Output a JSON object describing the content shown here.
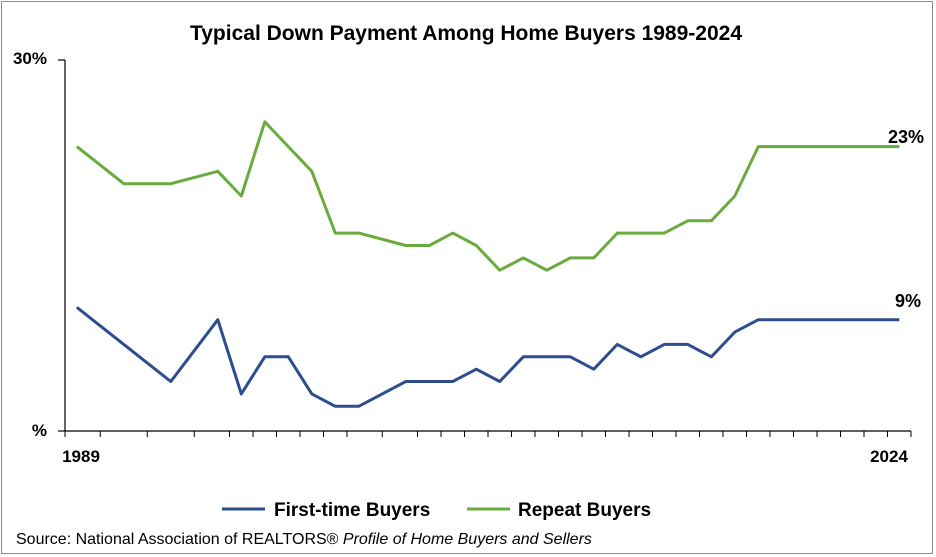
{
  "chart_data": {
    "type": "line",
    "title": "Typical Down Payment Among Home Buyers 1989-2024",
    "x": [
      1989,
      1991,
      1993,
      1995,
      1996,
      1997,
      1998,
      1999,
      2000,
      2001,
      2003,
      2004,
      2005,
      2006,
      2007,
      2008,
      2009,
      2010,
      2011,
      2012,
      2013,
      2014,
      2015,
      2016,
      2017,
      2018,
      2019,
      2020,
      2021,
      2022,
      2023,
      2024
    ],
    "xlim": [
      1988.5,
      2024.5
    ],
    "ylim": [
      0,
      30
    ],
    "y_tick_labels": {
      "top": "30%",
      "bottom": "%"
    },
    "x_tick_labels": {
      "left": "1989",
      "right": "2024"
    },
    "series": [
      {
        "name": "First-time Buyers",
        "color": "#2e4d8f",
        "values": [
          10,
          7,
          4,
          9,
          3,
          6,
          6,
          3,
          2,
          2,
          4,
          4,
          4,
          5,
          4,
          6,
          6,
          6,
          5,
          7,
          6,
          7,
          7,
          6,
          8,
          9,
          9,
          9,
          9,
          9,
          9,
          9
        ],
        "end_label": "9%"
      },
      {
        "name": "Repeat Buyers",
        "color": "#6aab3e",
        "values": [
          23,
          20,
          20,
          21,
          19,
          25,
          23,
          21,
          16,
          16,
          15,
          15,
          16,
          15,
          13,
          14,
          13,
          14,
          14,
          16,
          16,
          16,
          17,
          17,
          19,
          23,
          23,
          23,
          23,
          23,
          23,
          23
        ],
        "end_label": "23%"
      }
    ],
    "grid": false,
    "legend_position": "bottom"
  },
  "source": {
    "prefix": "Source: National Association of REALTORS® ",
    "italic": "Profile of Home Buyers and Sellers"
  }
}
